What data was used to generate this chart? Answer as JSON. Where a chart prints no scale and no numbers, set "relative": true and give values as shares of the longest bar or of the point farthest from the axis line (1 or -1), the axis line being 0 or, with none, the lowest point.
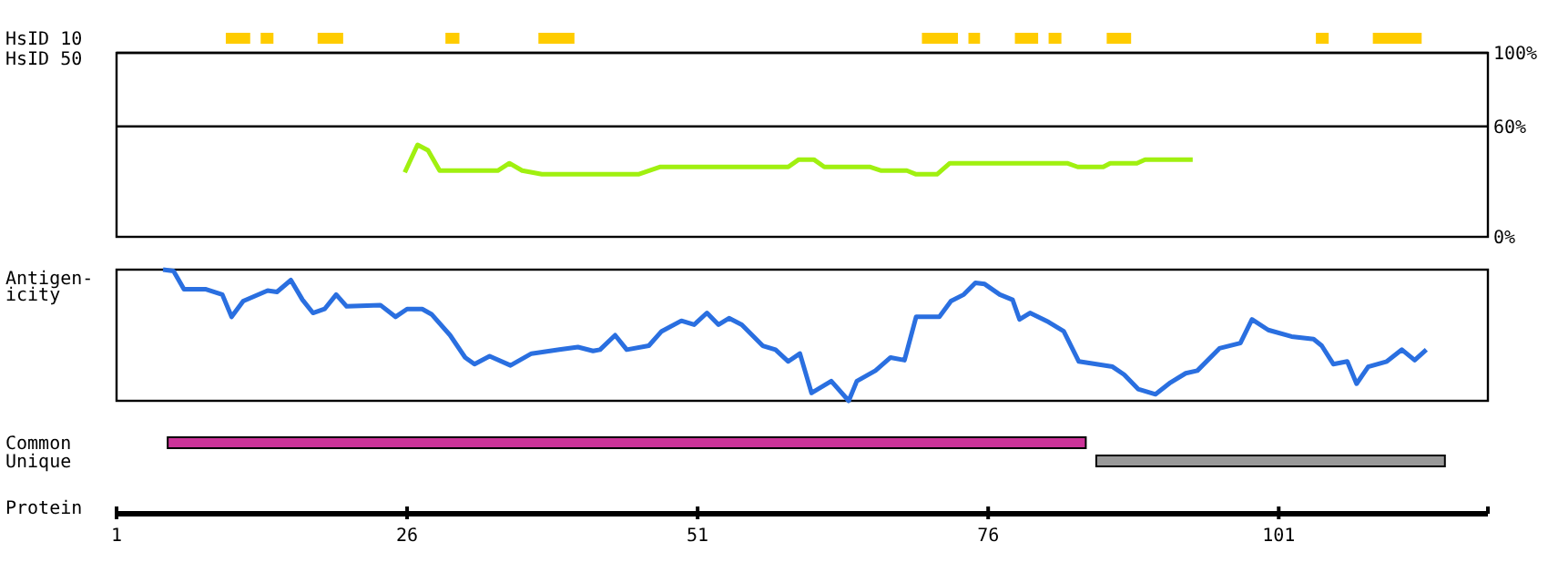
{
  "chart_data": [
    {
      "type": "bar",
      "orientation": "horizontal",
      "categories": [
        "HsID 10",
        "HsID 50"
      ],
      "xlim": [
        1,
        119
      ],
      "tick_labels": "y",
      "series": [
        {
          "color": "#ffcc00",
          "base": [
            10.4,
            null
          ],
          "values": [
            2.1,
            null
          ]
        },
        {
          "color": "#ffcc00",
          "base": [
            13.4,
            null
          ],
          "values": [
            1.1,
            null
          ]
        },
        {
          "color": "#ffcc00",
          "base": [
            18.3,
            null
          ],
          "values": [
            2.2,
            null
          ]
        },
        {
          "color": "#ffcc00",
          "base": [
            29.3,
            null
          ],
          "values": [
            1.2,
            null
          ]
        },
        {
          "color": "#ffcc00",
          "base": [
            37.3,
            null
          ],
          "values": [
            3.1,
            null
          ]
        },
        {
          "color": "#ffcc00",
          "base": [
            70.3,
            null
          ],
          "values": [
            3.1,
            null
          ]
        },
        {
          "color": "#ffcc00",
          "base": [
            74.3,
            null
          ],
          "values": [
            1.0,
            null
          ]
        },
        {
          "color": "#ffcc00",
          "base": [
            78.3,
            null
          ],
          "values": [
            2.0,
            null
          ]
        },
        {
          "color": "#ffcc00",
          "base": [
            81.2,
            null
          ],
          "values": [
            1.1,
            null
          ]
        },
        {
          "color": "#ffcc00",
          "base": [
            86.2,
            null
          ],
          "values": [
            2.1,
            null
          ]
        },
        {
          "color": "#ffcc00",
          "base": [
            104.2,
            null
          ],
          "values": [
            1.1,
            null
          ]
        },
        {
          "color": "#ffcc00",
          "base": [
            109.1,
            null
          ],
          "values": [
            4.2,
            null
          ]
        }
      ]
    },
    {
      "type": "line",
      "xlim": [
        1,
        119
      ],
      "ylim": [
        0,
        100
      ],
      "yticks": [
        {
          "value": 100,
          "label": "100%"
        },
        {
          "value": 60,
          "label": "60%"
        },
        {
          "value": 0,
          "label": "0%"
        }
      ],
      "tick_labels": "y",
      "ref_lines": [
        {
          "axis": "y",
          "value": 60,
          "label": null,
          "color": "#000000"
        }
      ],
      "series": [
        {
          "color": "#a0f010",
          "x": [
            25.8,
            26.9,
            27.8,
            28.8,
            33.8,
            34.8,
            35.9,
            37.6,
            45.9,
            47.8,
            58.8,
            59.7,
            61,
            61.9,
            65.8,
            66.8,
            69,
            69.8,
            71.6,
            72.7,
            82.8,
            83.7,
            85.9,
            86.5,
            88.8,
            89.5,
            93.6
          ],
          "values": [
            35,
            50,
            47,
            36,
            36,
            40,
            36,
            34,
            34,
            38,
            38,
            42,
            42,
            38,
            38,
            36,
            36,
            34,
            34,
            40,
            40,
            38,
            38,
            40,
            40,
            42,
            42
          ]
        }
      ]
    },
    {
      "type": "line",
      "ylabel": "Antigen-icity",
      "xlim": [
        1,
        119
      ],
      "relative": true,
      "tick_labels": false,
      "series": [
        {
          "color": "#2a6fe0",
          "x": [
            5.0,
            5.9,
            6.8,
            8.7,
            10.1,
            10.9,
            11.9,
            14,
            14.8,
            16,
            17,
            17.9,
            18.9,
            19.9,
            20.8,
            23.7,
            25,
            26,
            27.3,
            28.1,
            29.7,
            31,
            31.8,
            33.1,
            34.9,
            36.7,
            39.1,
            40.7,
            42,
            42.6,
            43.9,
            44.9,
            46.8,
            47.9,
            49.6,
            50.7,
            51.8,
            52.8,
            53.7,
            54.8,
            56.6,
            57.7,
            58.8,
            59.8,
            60.8,
            62.5,
            64,
            64.7,
            66.3,
            67.6,
            68.8,
            69.8,
            71.8,
            72.8,
            73.9,
            74.9,
            75.7,
            77,
            78.1,
            78.7,
            79.6,
            81.2,
            82.5,
            83.8,
            86.7,
            87.7,
            88.9,
            90.4,
            91.7,
            93,
            94,
            95.9,
            97.7,
            98.7,
            100.1,
            102.1,
            104,
            104.7,
            105.7,
            106.9,
            107.7,
            108.7,
            110.3,
            111.6,
            112.7,
            113.7
          ],
          "values": [
            1,
            0.99,
            0.85,
            0.85,
            0.81,
            0.64,
            0.76,
            0.84,
            0.83,
            0.92,
            0.77,
            0.67,
            0.7,
            0.81,
            0.72,
            0.73,
            0.64,
            0.7,
            0.7,
            0.66,
            0.5,
            0.33,
            0.28,
            0.34,
            0.27,
            0.36,
            0.39,
            0.41,
            0.38,
            0.39,
            0.5,
            0.39,
            0.42,
            0.53,
            0.61,
            0.58,
            0.67,
            0.58,
            0.63,
            0.58,
            0.42,
            0.39,
            0.3,
            0.36,
            0.06,
            0.15,
            0,
            0.15,
            0.23,
            0.33,
            0.31,
            0.64,
            0.64,
            0.76,
            0.81,
            0.9,
            0.89,
            0.81,
            0.77,
            0.62,
            0.67,
            0.6,
            0.53,
            0.3,
            0.26,
            0.2,
            0.09,
            0.05,
            0.14,
            0.21,
            0.23,
            0.4,
            0.44,
            0.62,
            0.54,
            0.49,
            0.47,
            0.42,
            0.28,
            0.3,
            0.13,
            0.26,
            0.3,
            0.39,
            0.31,
            0.39
          ]
        }
      ]
    },
    {
      "type": "bar",
      "orientation": "horizontal",
      "categories": [
        "Common",
        "Unique"
      ],
      "xlabel": "Protein",
      "xlim": [
        1,
        119
      ],
      "xticks": [
        1,
        26,
        51,
        76,
        101
      ],
      "base": [
        5.4,
        85.3
      ],
      "values": [
        79,
        30
      ],
      "colors": [
        "#cc3399",
        "#999999"
      ]
    }
  ]
}
